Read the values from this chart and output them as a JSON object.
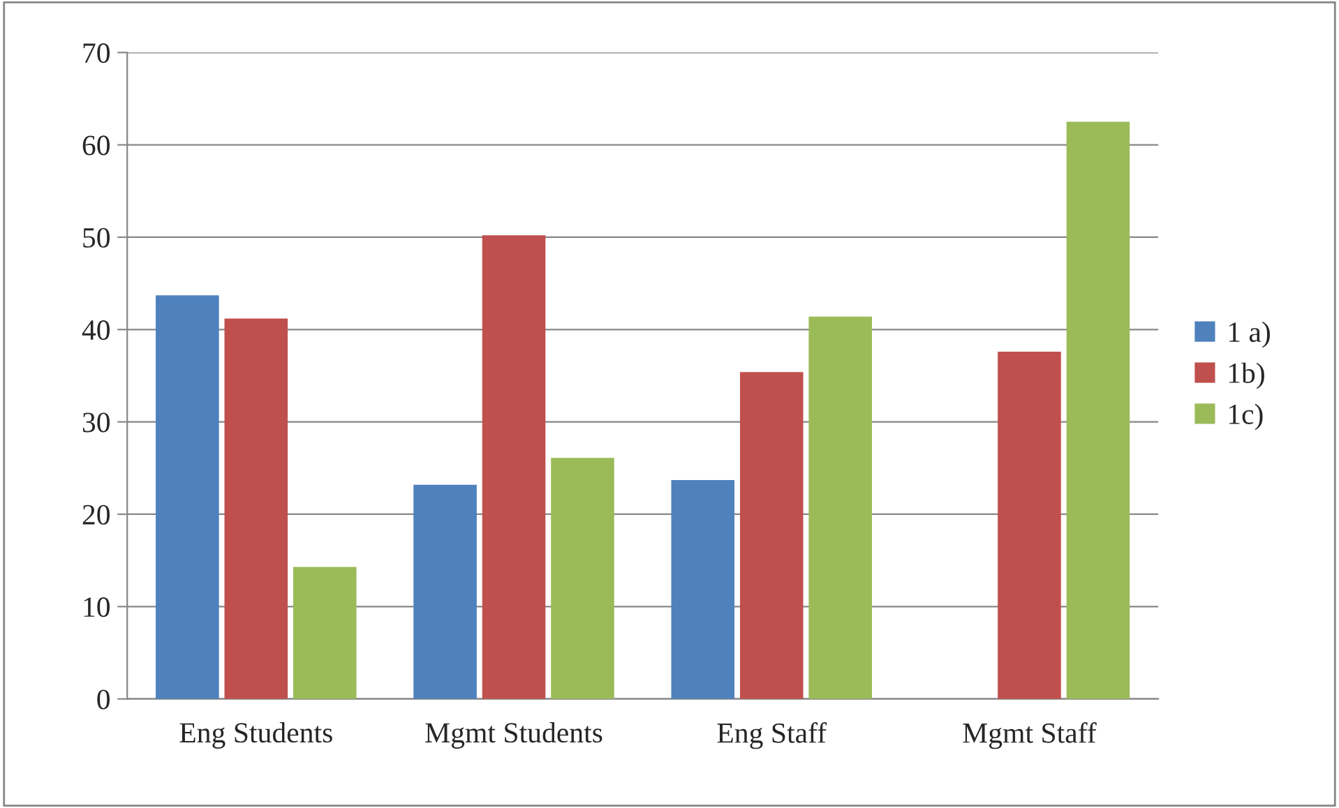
{
  "chart_data": {
    "type": "bar",
    "categories": [
      "Eng Students",
      "Mgmt Students",
      "Eng Staff",
      "Mgmt Staff"
    ],
    "series": [
      {
        "name": "1 a)",
        "color": "#4f81bd",
        "values": [
          43.7,
          23.2,
          23.7,
          0
        ]
      },
      {
        "name": "1b)",
        "color": "#c0504d",
        "values": [
          41.2,
          50.2,
          35.4,
          37.6
        ]
      },
      {
        "name": "1c)",
        "color": "#9bbb59",
        "values": [
          14.3,
          26.1,
          41.4,
          62.5
        ]
      }
    ],
    "ylim": [
      0,
      70
    ],
    "yticks": [
      0,
      10,
      20,
      30,
      40,
      50,
      60,
      70
    ],
    "grid": "y",
    "legend": "right"
  }
}
